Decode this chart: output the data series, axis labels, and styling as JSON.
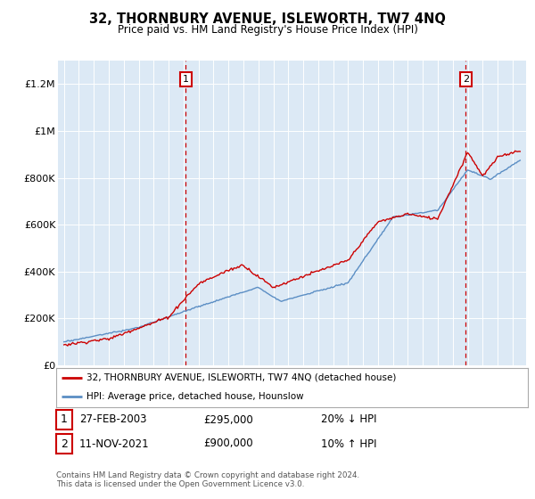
{
  "title": "32, THORNBURY AVENUE, ISLEWORTH, TW7 4NQ",
  "subtitle": "Price paid vs. HM Land Registry's House Price Index (HPI)",
  "background_color": "#dce6f0",
  "plot_bg_color": "#dce9f5",
  "ylim": [
    0,
    1300000
  ],
  "yticks": [
    0,
    200000,
    400000,
    600000,
    800000,
    1000000,
    1200000
  ],
  "ytick_labels": [
    "£0",
    "£200K",
    "£400K",
    "£600K",
    "£800K",
    "£1M",
    "£1.2M"
  ],
  "sale1_date": 2003.15,
  "sale1_price": 295000,
  "sale1_label": "1",
  "sale2_date": 2021.87,
  "sale2_price": 900000,
  "sale2_label": "2",
  "red_line_color": "#cc0000",
  "blue_line_color": "#5b8ec4",
  "dashed_line_color": "#cc0000",
  "legend_line1": "32, THORNBURY AVENUE, ISLEWORTH, TW7 4NQ (detached house)",
  "legend_line2": "HPI: Average price, detached house, Hounslow",
  "table_row1": [
    "1",
    "27-FEB-2003",
    "£295,000",
    "20% ↓ HPI"
  ],
  "table_row2": [
    "2",
    "11-NOV-2021",
    "£900,000",
    "10% ↑ HPI"
  ],
  "footnote": "Contains HM Land Registry data © Crown copyright and database right 2024.\nThis data is licensed under the Open Government Licence v3.0."
}
